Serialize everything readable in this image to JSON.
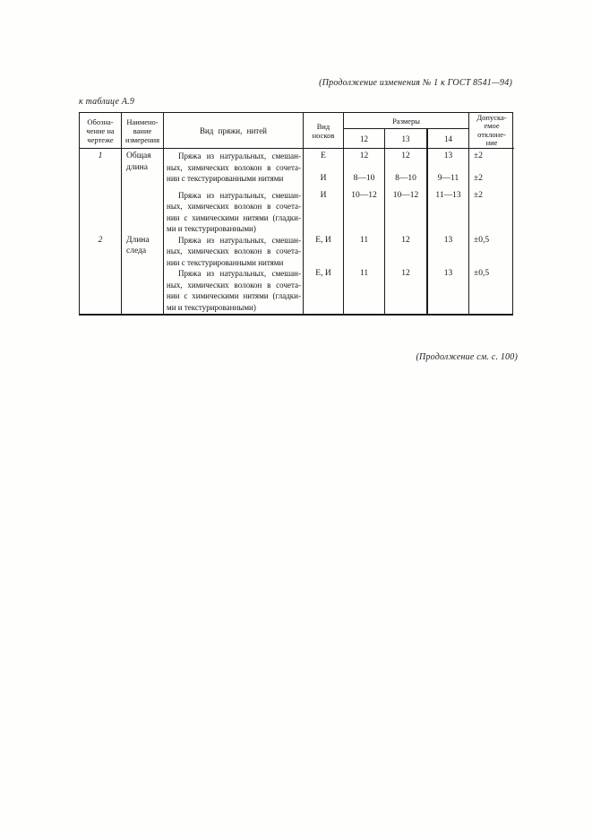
{
  "page": {
    "header_note": "(Продолжение изменения № 1 к ГОСТ 8541—94)",
    "table_caption": "к таблице А.9",
    "footer_note": "(Продолжение см. с. 100)"
  },
  "table": {
    "header": {
      "designation_lines": [
        "Обозна-",
        "чение на",
        "чертеже"
      ],
      "measure_lines": [
        "Наимено-",
        "вание",
        "измерения"
      ],
      "yarn_label": "Вид пряжи, нитей",
      "sock_lines": [
        "Вид",
        "носков"
      ],
      "sizes_group_label": "Размеры",
      "size_cols": [
        "12",
        "13",
        "14"
      ],
      "tolerance_lines": [
        "Допуска-",
        "емое",
        "отклоне-",
        "ние"
      ]
    },
    "body": {
      "row1": {
        "designation": "1",
        "measure_lines": [
          "Общая",
          "длина"
        ],
        "para1_lines": [
          "Пряжа из натуральных, смешан-",
          "ных, химических волокон в сочета-",
          "нии с текстурированными нитями"
        ],
        "para2_lines": [
          "Пряжа из натуральных, смешан-",
          "ных, химических волокон в сочета-",
          "нии с химическими нитями (гладки-",
          "ми и текстурированными)"
        ]
      },
      "row2": {
        "designation": "2",
        "measure_lines": [
          "Длина",
          "следа"
        ],
        "para1_lines": [
          "Пряжа из натуральных, смешан-",
          "ных, химических волокон в сочета-",
          "нии с текстурированными нитями"
        ],
        "para2_lines": [
          "Пряжа из натуральных, смешан-",
          "ных, химических волокон в сочета-",
          "нии с химическими нитями (гладки-",
          "ми и текстурированными)"
        ]
      },
      "values": [
        {
          "sock": "Е",
          "s12": "12",
          "s13": "12",
          "s14": "13",
          "tol": "±2"
        },
        {
          "sock": "И",
          "s12": "8—10",
          "s13": "8—10",
          "s14": "9—11",
          "tol": "±2"
        },
        {
          "sock": "И",
          "s12": "10—12",
          "s13": "10—12",
          "s14": "11—13",
          "tol": "±2"
        },
        {
          "sock": "Е, И",
          "s12": "11",
          "s13": "12",
          "s14": "13",
          "tol": "±0,5"
        },
        {
          "sock": "Е, И",
          "s12": "11",
          "s13": "12",
          "s14": "13",
          "tol": "±0,5"
        }
      ]
    }
  }
}
